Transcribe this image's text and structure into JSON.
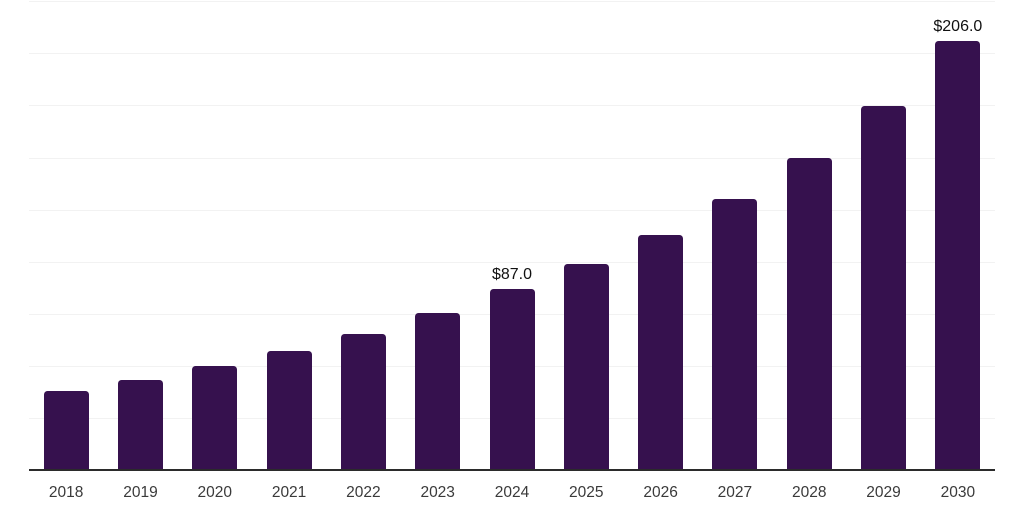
{
  "chart_data": {
    "type": "bar",
    "title": "",
    "xlabel": "",
    "ylabel": "",
    "categories": [
      "2018",
      "2019",
      "2020",
      "2021",
      "2022",
      "2023",
      "2024",
      "2025",
      "2026",
      "2027",
      "2028",
      "2029",
      "2030"
    ],
    "values": [
      37.8,
      43.2,
      50.1,
      57.0,
      65.3,
      75.6,
      87.0,
      98.9,
      113.0,
      130.0,
      149.8,
      174.9,
      206.0
    ],
    "data_labels": [
      {
        "category": "2024",
        "text": "$87.0"
      },
      {
        "category": "2030",
        "text": "$206.0"
      }
    ],
    "ylim": [
      0,
      225.6
    ],
    "y_gridline_step": 25,
    "y_gridline_max": 225,
    "y_tick_labels_visible": false,
    "grid": "horizontal",
    "legend_position": "none"
  },
  "style": {
    "background_color": "#ffffff",
    "bar_color": "#36114E",
    "gridline_color": "#f2f2f2",
    "axis_line_color": "#2b2b2b",
    "tick_label_color": "#3a3a3a",
    "data_label_color": "#111111"
  }
}
